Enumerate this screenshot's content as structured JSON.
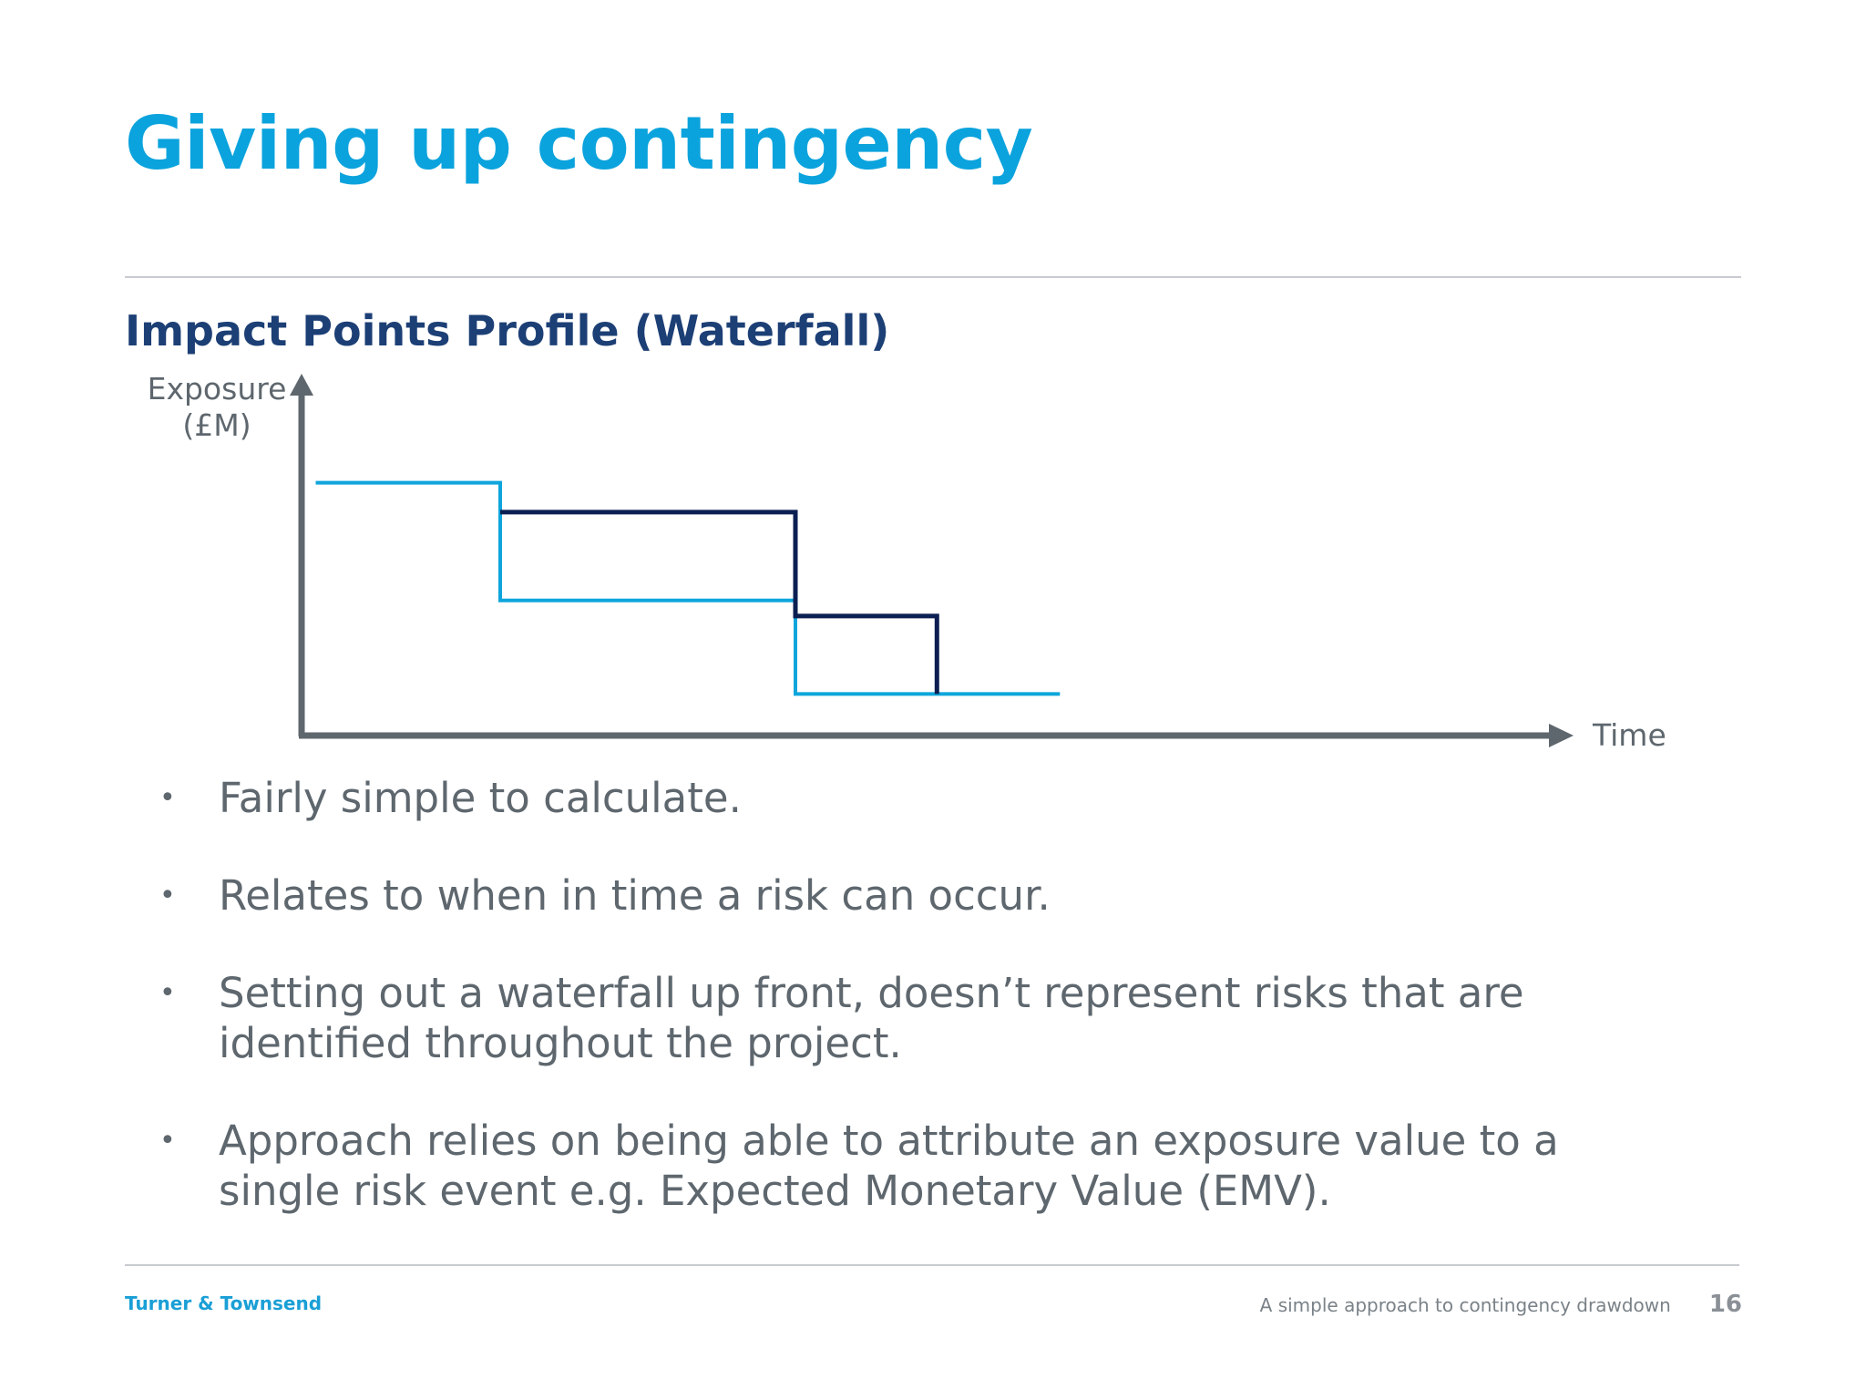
{
  "slide": {
    "title": "Giving up contingency",
    "subtitle": "Impact Points Profile (Waterfall)"
  },
  "chart_data": {
    "type": "line",
    "step": true,
    "ylabel_lines": [
      "Exposure",
      "(£M)"
    ],
    "xlabel": "Time",
    "axis_ticks": false,
    "x_range": [
      0,
      10
    ],
    "y_range": [
      0,
      10
    ],
    "series": [
      {
        "color": "#0ea5dc",
        "points": [
          [
            0.1,
            7.3
          ],
          [
            1.6,
            7.3
          ],
          [
            1.6,
            3.9
          ],
          [
            4.0,
            3.9
          ],
          [
            4.0,
            1.2
          ],
          [
            6.15,
            1.2
          ]
        ]
      },
      {
        "color": "#0c1f52",
        "points": [
          [
            1.6,
            6.45
          ],
          [
            4.0,
            6.45
          ],
          [
            4.0,
            3.45
          ],
          [
            5.15,
            3.45
          ],
          [
            5.15,
            1.2
          ]
        ]
      }
    ]
  },
  "bullets": [
    "Fairly simple to calculate.",
    "Relates to when in time a risk can occur.",
    "Setting out a waterfall up front, doesn’t represent risks that are identified throughout the project.",
    "Approach relies on being able to attribute an exposure value to a single risk event e.g. Expected Monetary Value (EMV)."
  ],
  "bullet_glyph": "•",
  "footer": {
    "brand": "Turner & Townsend",
    "deck_title": "A simple approach to contingency drawdown",
    "page_number": "16"
  },
  "colors": {
    "title": "#0ba3dd",
    "subtitle": "#1c3f75",
    "axis": "#5f676e",
    "brand": "#1a9fd6"
  }
}
